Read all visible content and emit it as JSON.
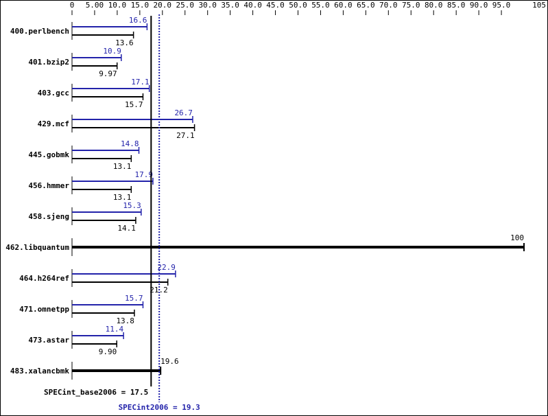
{
  "chart_data": {
    "type": "bar",
    "orientation": "horizontal",
    "xlim": [
      0,
      105
    ],
    "tick_labels": [
      "0",
      "5.00",
      "10.0",
      "15.0",
      "20.0",
      "25.0",
      "30.0",
      "35.0",
      "40.0",
      "45.0",
      "50.0",
      "55.0",
      "60.0",
      "65.0",
      "70.0",
      "75.0",
      "80.0",
      "85.0",
      "90.0",
      "95.0",
      "105"
    ],
    "tick_values": [
      0,
      5,
      10,
      15,
      20,
      25,
      30,
      35,
      40,
      45,
      50,
      55,
      60,
      65,
      70,
      75,
      80,
      85,
      90,
      95,
      105
    ],
    "categories": [
      "400.perlbench",
      "401.bzip2",
      "403.gcc",
      "429.mcf",
      "445.gobmk",
      "456.hmmer",
      "458.sjeng",
      "462.libquantum",
      "464.h264ref",
      "471.omnetpp",
      "473.astar",
      "483.xalancbmk"
    ],
    "series": [
      {
        "key": "peak",
        "color": "#2222aa",
        "values": [
          16.6,
          10.9,
          17.1,
          26.7,
          14.8,
          17.9,
          15.3,
          100,
          22.9,
          15.7,
          11.4,
          19.6
        ],
        "labels": [
          "16.6",
          "10.9",
          "17.1",
          "26.7",
          "14.8",
          "17.9",
          "15.3",
          "100",
          "22.9",
          "15.7",
          "11.4",
          "19.6"
        ]
      },
      {
        "key": "base",
        "color": "#000000",
        "values": [
          13.6,
          9.97,
          15.7,
          27.1,
          13.1,
          13.1,
          14.1,
          100,
          21.2,
          13.8,
          9.9,
          19.6
        ],
        "labels": [
          "13.6",
          "9.97",
          "15.7",
          "27.1",
          "13.1",
          "13.1",
          "14.1",
          "100",
          "21.2",
          "13.8",
          "9.90",
          "19.6"
        ]
      }
    ],
    "combined": [
      false,
      false,
      false,
      false,
      false,
      false,
      false,
      true,
      false,
      false,
      false,
      true
    ],
    "base_mean": {
      "label": "SPECint_base2006 = 17.5",
      "value": 17.5,
      "color": "#000000"
    },
    "peak_mean": {
      "label": "SPECint2006 = 19.3",
      "value": 19.3,
      "color": "#2222aa"
    }
  }
}
